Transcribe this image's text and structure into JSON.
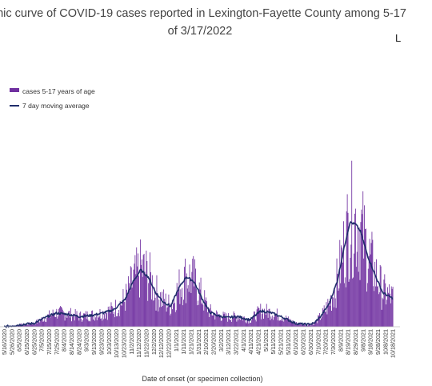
{
  "title": {
    "line1": "mic curve of COVID-19 cases reported in Lexington-Fayette County among 5-17",
    "line2": "of 3/17/2022",
    "corner": "L"
  },
  "colors": {
    "bar": "#7030a0",
    "line": "#1f2d6b",
    "text": "#333333"
  },
  "chart_data": {
    "type": "bar",
    "title": "mic curve of COVID-19 cases reported in Lexington-Fayette County among 5-17 of 3/17/2022",
    "xlabel": "Date of onset (or specimen collection)",
    "ylabel": "",
    "ylim": [
      0,
      230
    ],
    "legend": {
      "placement": "top-left",
      "entries": [
        "cases 5-17 years of age",
        "7 day moving average"
      ]
    },
    "series": [
      {
        "name": "cases 5-17 years of age",
        "type": "bar"
      },
      {
        "name": "7 day moving average",
        "type": "line"
      }
    ],
    "x_tick_labels": [
      "5/16/2020",
      "5/26/2020",
      "6/5/2020",
      "6/15/2020",
      "6/25/2020",
      "7/5/2020",
      "7/15/2020",
      "7/25/2020",
      "8/4/2020",
      "8/14/2020",
      "8/24/2020",
      "9/3/2020",
      "9/13/2020",
      "9/23/2020",
      "10/3/2020",
      "10/13/2020",
      "10/23/2020",
      "11/2/2020",
      "11/12/2020",
      "11/22/2020",
      "12/2/2020",
      "12/12/2020",
      "12/22/2020",
      "1/1/2021",
      "1/11/2021",
      "1/21/2021",
      "1/31/2021",
      "2/10/2021",
      "2/20/2021",
      "3/2/2021",
      "3/12/2021",
      "3/22/2021",
      "4/1/2021",
      "4/11/2021",
      "4/21/2021",
      "5/1/2021",
      "5/11/2021",
      "5/21/2021",
      "5/31/2021",
      "6/10/2021",
      "6/20/2021",
      "6/30/2021",
      "7/10/2021",
      "7/20/2021",
      "7/30/2021",
      "8/9/2021",
      "8/19/2021",
      "8/29/2021",
      "9/8/2021",
      "9/18/2021",
      "9/28/2021",
      "10/8/2021",
      "10/18/2021"
    ],
    "moving_average_profile": [
      [
        "5/16/2020",
        0
      ],
      [
        "6/10/2020",
        2
      ],
      [
        "6/25/2020",
        3
      ],
      [
        "7/10/2020",
        8
      ],
      [
        "7/25/2020",
        12
      ],
      [
        "8/10/2020",
        11
      ],
      [
        "8/25/2020",
        9
      ],
      [
        "9/10/2020",
        10
      ],
      [
        "9/25/2020",
        12
      ],
      [
        "10/10/2020",
        15
      ],
      [
        "10/25/2020",
        24
      ],
      [
        "11/5/2020",
        40
      ],
      [
        "11/15/2020",
        50
      ],
      [
        "11/25/2020",
        44
      ],
      [
        "12/5/2020",
        30
      ],
      [
        "12/15/2020",
        22
      ],
      [
        "12/25/2020",
        18
      ],
      [
        "1/5/2021",
        34
      ],
      [
        "1/15/2021",
        44
      ],
      [
        "1/25/2021",
        40
      ],
      [
        "2/5/2021",
        25
      ],
      [
        "2/15/2021",
        13
      ],
      [
        "2/25/2021",
        10
      ],
      [
        "3/10/2021",
        8
      ],
      [
        "3/25/2021",
        9
      ],
      [
        "4/10/2021",
        6
      ],
      [
        "4/25/2021",
        14
      ],
      [
        "5/10/2021",
        12
      ],
      [
        "5/25/2021",
        8
      ],
      [
        "6/10/2021",
        3
      ],
      [
        "6/25/2021",
        2
      ],
      [
        "7/5/2021",
        3
      ],
      [
        "7/15/2021",
        10
      ],
      [
        "7/25/2021",
        20
      ],
      [
        "8/5/2021",
        40
      ],
      [
        "8/15/2021",
        72
      ],
      [
        "8/22/2021",
        92
      ],
      [
        "8/30/2021",
        90
      ],
      [
        "9/5/2021",
        84
      ],
      [
        "9/15/2021",
        62
      ],
      [
        "9/25/2021",
        45
      ],
      [
        "10/5/2021",
        30
      ],
      [
        "10/18/2021",
        25
      ]
    ]
  }
}
